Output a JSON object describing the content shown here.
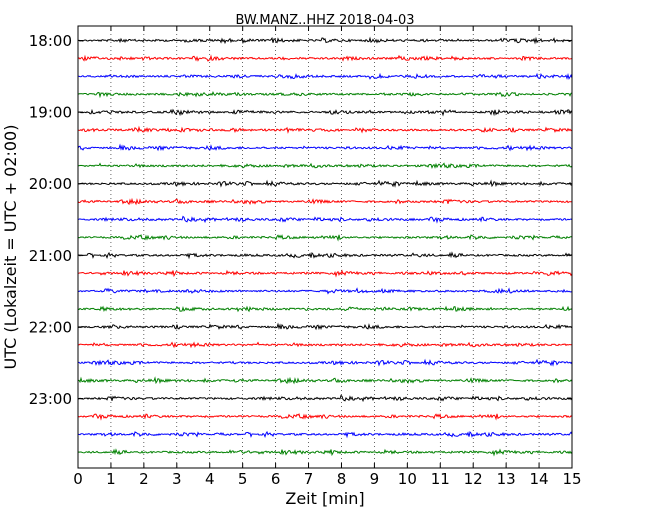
{
  "chart_data": {
    "type": "line",
    "title": "BW.MANZ..HHZ 2018-04-03",
    "xlabel": "Zeit  [min]",
    "ylabel": "UTC (Lokalzeit = UTC + 02:00)",
    "xlim": [
      0,
      15
    ],
    "x_ticks": [
      0,
      1,
      2,
      3,
      4,
      5,
      6,
      7,
      8,
      9,
      10,
      11,
      12,
      13,
      14,
      15
    ],
    "x_grid": "dotted vertical lines at each minute",
    "y_tick_labels": [
      "18:00",
      "19:00",
      "20:00",
      "21:00",
      "22:00",
      "23:00"
    ],
    "trace_colors_cycle": [
      "#000000",
      "#ff0000",
      "#0000ff",
      "#008000"
    ],
    "series": [
      {
        "start": "18:00",
        "color": "#000000"
      },
      {
        "start": "18:15",
        "color": "#ff0000"
      },
      {
        "start": "18:30",
        "color": "#0000ff"
      },
      {
        "start": "18:45",
        "color": "#008000"
      },
      {
        "start": "19:00",
        "color": "#000000"
      },
      {
        "start": "19:15",
        "color": "#ff0000"
      },
      {
        "start": "19:30",
        "color": "#0000ff"
      },
      {
        "start": "19:45",
        "color": "#008000"
      },
      {
        "start": "20:00",
        "color": "#000000"
      },
      {
        "start": "20:15",
        "color": "#ff0000"
      },
      {
        "start": "20:30",
        "color": "#0000ff"
      },
      {
        "start": "20:45",
        "color": "#008000"
      },
      {
        "start": "21:00",
        "color": "#000000"
      },
      {
        "start": "21:15",
        "color": "#ff0000"
      },
      {
        "start": "21:30",
        "color": "#0000ff"
      },
      {
        "start": "21:45",
        "color": "#008000"
      },
      {
        "start": "22:00",
        "color": "#000000"
      },
      {
        "start": "22:15",
        "color": "#ff0000"
      },
      {
        "start": "22:30",
        "color": "#0000ff"
      },
      {
        "start": "22:45",
        "color": "#008000"
      },
      {
        "start": "23:00",
        "color": "#000000"
      },
      {
        "start": "23:15",
        "color": "#ff0000"
      },
      {
        "start": "23:30",
        "color": "#0000ff"
      },
      {
        "start": "23:45",
        "color": "#008000"
      }
    ]
  }
}
